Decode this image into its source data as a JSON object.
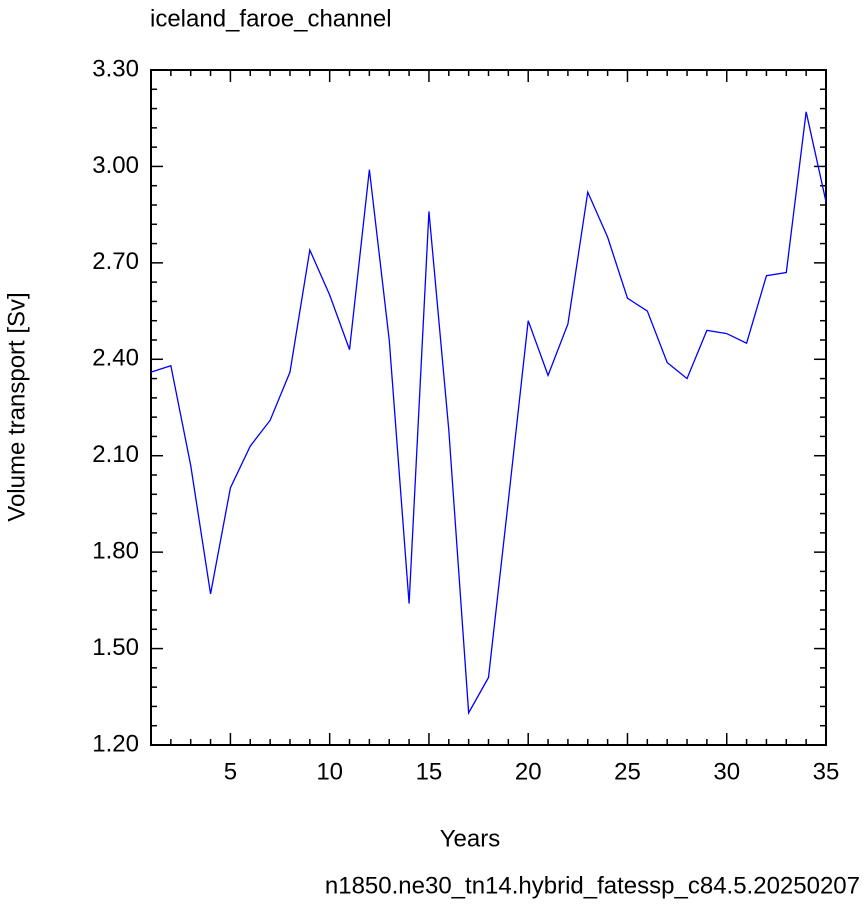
{
  "chart_data": {
    "type": "line",
    "title": "iceland_faroe_channel",
    "x_label": "Years",
    "y_label": "Volume transport [Sv]",
    "footer": "n1850.ne30_tn14.hybrid_fatessp_c84.5.20250207",
    "footer_color": "#0000ff",
    "x": [
      1,
      2,
      3,
      4,
      5,
      6,
      7,
      8,
      9,
      10,
      11,
      12,
      13,
      14,
      15,
      16,
      17,
      18,
      19,
      20,
      21,
      22,
      23,
      24,
      25,
      26,
      27,
      28,
      29,
      30,
      31,
      32,
      33,
      34,
      35
    ],
    "series": [
      {
        "color": "#0000ff",
        "values": [
          2.36,
          2.38,
          2.07,
          1.67,
          2.0,
          2.13,
          2.21,
          2.36,
          2.74,
          2.6,
          2.43,
          2.99,
          2.46,
          1.64,
          2.86,
          2.18,
          1.3,
          1.41,
          1.96,
          2.52,
          2.35,
          2.51,
          2.92,
          2.78,
          2.59,
          2.55,
          2.39,
          2.34,
          2.49,
          2.48,
          2.45,
          2.66,
          2.67,
          3.17,
          2.89
        ]
      }
    ],
    "xlim": [
      1,
      35
    ],
    "xticks": [
      5,
      10,
      15,
      20,
      25,
      30,
      35
    ],
    "ylim": [
      1.2,
      3.3
    ],
    "yticks": [
      {
        "value": 1.2,
        "label": "1.20"
      },
      {
        "value": 1.5,
        "label": "1.50"
      },
      {
        "value": 1.8,
        "label": "1.80"
      },
      {
        "value": 2.1,
        "label": "2.10"
      },
      {
        "value": 2.4,
        "label": "2.40"
      },
      {
        "value": 2.7,
        "label": "2.70"
      },
      {
        "value": 3.0,
        "label": "3.00"
      },
      {
        "value": 3.3,
        "label": "3.30"
      }
    ]
  }
}
